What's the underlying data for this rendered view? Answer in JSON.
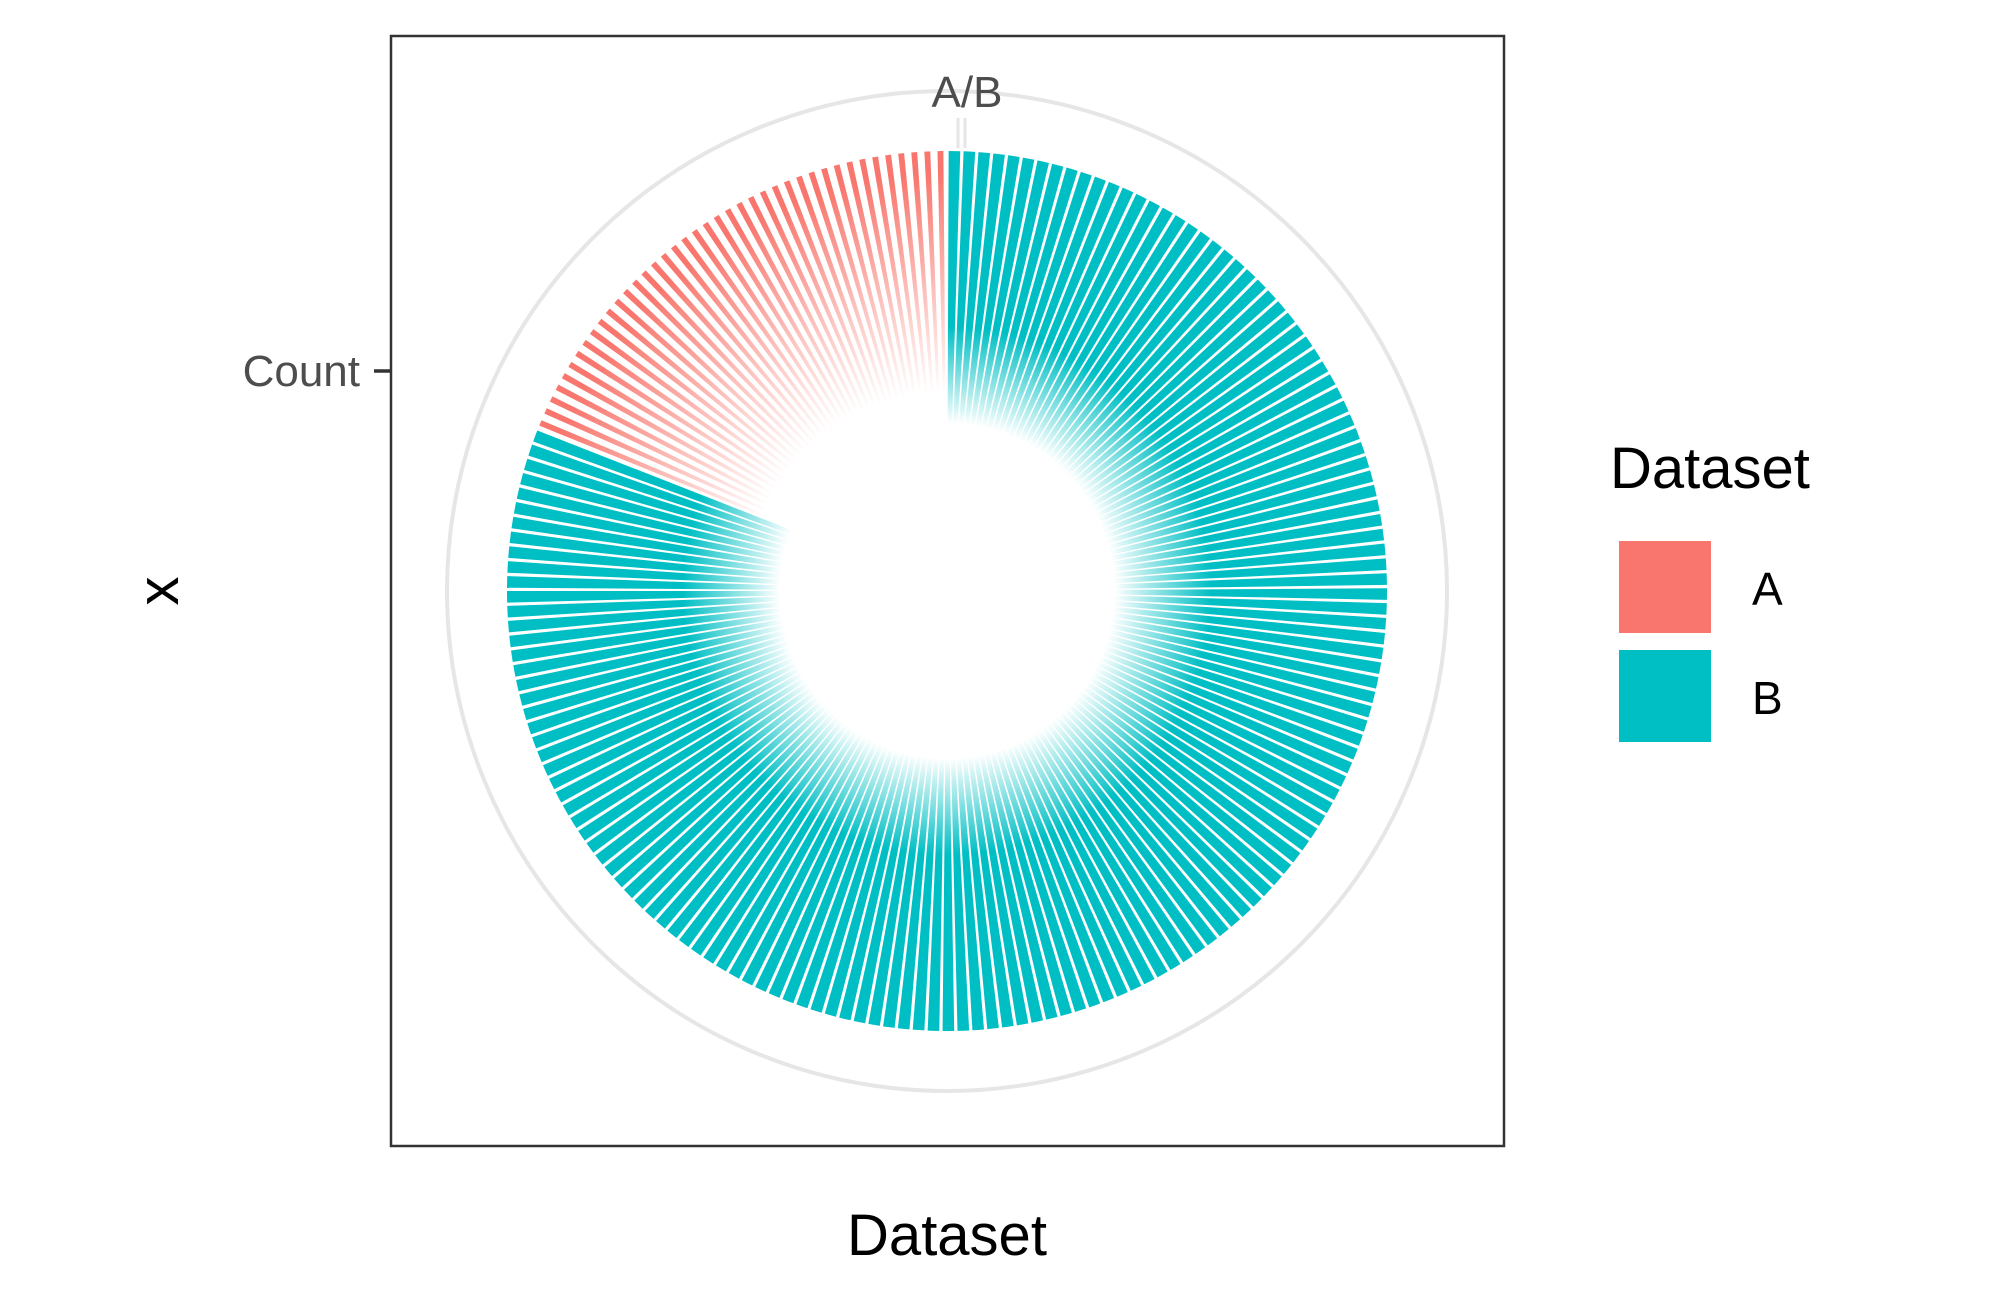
{
  "chart_data": {
    "type": "bar",
    "coordinate_system": "polar",
    "fill_style": "radial gradient fading to transparent toward the centre",
    "x_category": "A/B",
    "xlabel": "Dataset",
    "ylabel": "x",
    "y_tick_label": "Count",
    "grid": true,
    "legend": {
      "title": "Dataset",
      "position": "right",
      "entries": [
        {
          "label": "A",
          "color": "#F8766D"
        },
        {
          "label": "B",
          "color": "#00BFC4"
        }
      ]
    },
    "series": [
      {
        "name": "A",
        "color": "#F8766D",
        "bars": 40,
        "share": 0.19
      },
      {
        "name": "B",
        "color": "#00BFC4",
        "bars": 150,
        "share": 0.81
      }
    ]
  }
}
